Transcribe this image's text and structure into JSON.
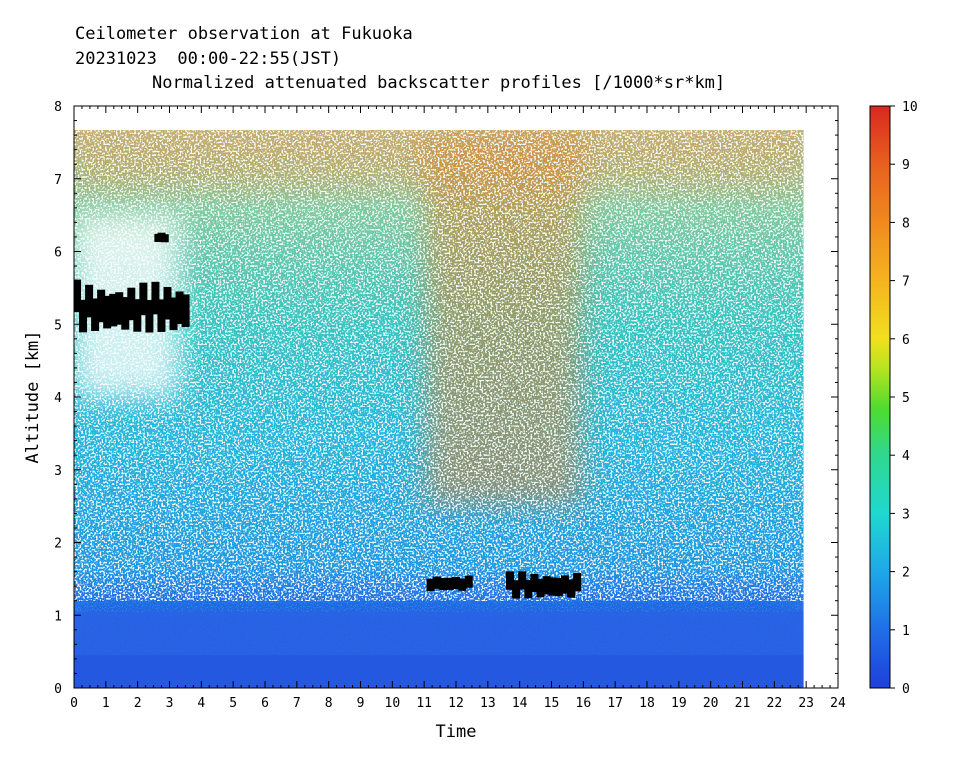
{
  "chart_data": {
    "type": "heatmap",
    "title_line1": "Ceilometer observation at Fukuoka",
    "title_line2": "20231023  00:00-22:55(JST)",
    "title": "Normalized attenuated backscatter profiles [/1000*sr*km]",
    "xlabel": "Time",
    "ylabel": "Altitude [km]",
    "xlim": [
      0,
      24
    ],
    "ylim": [
      0,
      8
    ],
    "x_ticks": [
      "0",
      "1",
      "2",
      "3",
      "4",
      "5",
      "6",
      "7",
      "8",
      "9",
      "10",
      "11",
      "12",
      "13",
      "14",
      "15",
      "16",
      "17",
      "18",
      "19",
      "20",
      "21",
      "22",
      "23",
      "24"
    ],
    "y_ticks": [
      "0",
      "1",
      "2",
      "3",
      "4",
      "5",
      "6",
      "7",
      "8"
    ],
    "colorbar": {
      "min": 0,
      "max": 10,
      "ticks": [
        "0",
        "1",
        "2",
        "3",
        "4",
        "5",
        "6",
        "7",
        "8",
        "9",
        "10"
      ],
      "colors": [
        "#1f3fdc",
        "#1f6fe6",
        "#1f9fe6",
        "#1fcfe0",
        "#2fd88f",
        "#3fd83f",
        "#9fdf1f",
        "#e8e81f",
        "#f5b41f",
        "#f0801f",
        "#e5501f",
        "#d8281f"
      ]
    },
    "data_time_range": [
      0,
      22.92
    ],
    "data_top_altitude_km": 7.67,
    "regions": [
      {
        "name": "boundary layer",
        "x": [
          0,
          22.92
        ],
        "y": [
          0,
          1.3
        ],
        "value": 0.8
      },
      {
        "name": "aerosol layer 11-16h",
        "x": [
          11,
          16
        ],
        "y": [
          2.5,
          7.6
        ],
        "value": 5.5
      }
    ],
    "clouds": [
      {
        "x": [
          0,
          3.6
        ],
        "y": [
          4.9,
          5.6
        ]
      },
      {
        "x": [
          2.6,
          2.9
        ],
        "y": [
          6.15,
          6.25
        ]
      },
      {
        "x": [
          11.1,
          12.5
        ],
        "y": [
          1.35,
          1.55
        ]
      },
      {
        "x": [
          13.6,
          15.9
        ],
        "y": [
          1.25,
          1.6
        ]
      }
    ]
  }
}
